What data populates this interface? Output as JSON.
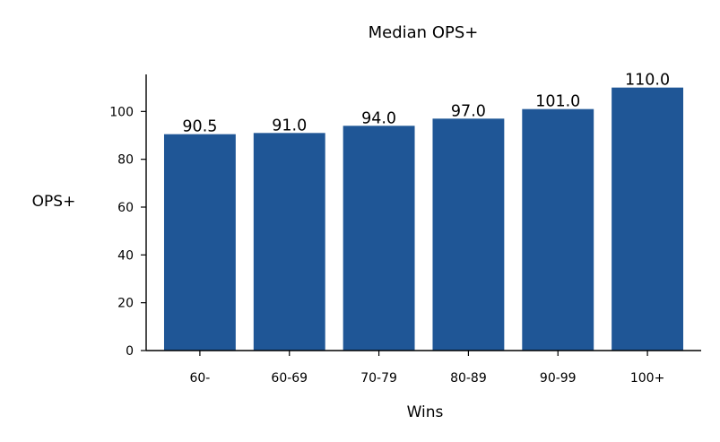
{
  "chart_data": {
    "type": "bar",
    "title": "Median OPS+",
    "xlabel": "Wins",
    "ylabel": "OPS+",
    "categories": [
      "60-",
      "60-69",
      "70-79",
      "80-89",
      "90-99",
      "100+"
    ],
    "values": [
      90.5,
      91.0,
      94.0,
      97.0,
      101.0,
      110.0
    ],
    "data_labels": [
      "90.5",
      "91.0",
      "94.0",
      "97.0",
      "101.0",
      "110.0"
    ],
    "ylim": [
      0,
      115.5
    ],
    "yticks": [
      0,
      20,
      40,
      60,
      80,
      100
    ],
    "grid": false,
    "bar_color": "#1f5696"
  }
}
